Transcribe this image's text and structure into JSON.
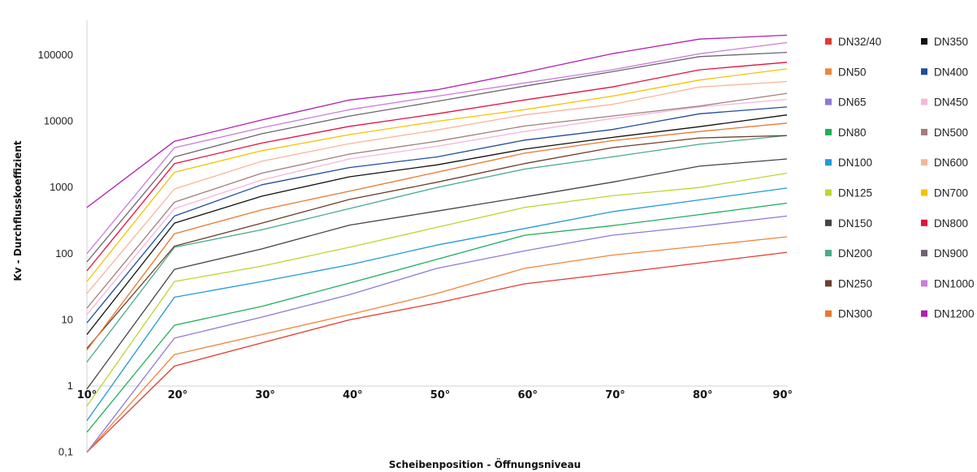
{
  "chart_data": {
    "type": "line",
    "xlabel": "Scheibenposition - Öffnungsniveau",
    "ylabel": "Kv - Durchflusskoeffizient",
    "categories": [
      "10°",
      "20°",
      "30°",
      "40°",
      "50°",
      "60°",
      "70°",
      "80°",
      "90°"
    ],
    "y_scale": "log",
    "ylim": [
      0.1,
      200000
    ],
    "y_ticks": [
      {
        "value": 0.1,
        "label": "0,1"
      },
      {
        "value": 1,
        "label": "1"
      },
      {
        "value": 10,
        "label": "10"
      },
      {
        "value": 100,
        "label": "100"
      },
      {
        "value": 1000,
        "label": "1000"
      },
      {
        "value": 10000,
        "label": "10000"
      },
      {
        "value": 100000,
        "label": "100000"
      }
    ],
    "grid": false,
    "legend_position": "right",
    "series": [
      {
        "name": "DN32/40",
        "color": "#e23b2e",
        "values": [
          0.1,
          2,
          4.5,
          10,
          18,
          35,
          50,
          72,
          105
        ]
      },
      {
        "name": "DN50",
        "color": "#f0853a",
        "values": [
          0.1,
          3,
          6,
          12,
          25,
          60,
          95,
          130,
          180
        ]
      },
      {
        "name": "DN65",
        "color": "#8f79d6",
        "values": [
          0.1,
          5.3,
          11,
          24,
          60,
          110,
          190,
          260,
          370
        ]
      },
      {
        "name": "DN80",
        "color": "#1fae5c",
        "values": [
          0.2,
          8.3,
          16,
          36,
          82,
          190,
          265,
          390,
          580
        ]
      },
      {
        "name": "DN100",
        "color": "#2199d6",
        "values": [
          0.3,
          22,
          38,
          68,
          135,
          240,
          430,
          650,
          980
        ]
      },
      {
        "name": "DN125",
        "color": "#bcd630",
        "values": [
          0.5,
          38,
          65,
          125,
          250,
          500,
          750,
          1000,
          1650
        ]
      },
      {
        "name": "DN150",
        "color": "#444444",
        "values": [
          0.9,
          58,
          118,
          270,
          440,
          720,
          1200,
          2100,
          2700
        ]
      },
      {
        "name": "DN200",
        "color": "#45ab8e",
        "values": [
          2.3,
          125,
          230,
          480,
          1000,
          1900,
          2900,
          4500,
          6100
        ]
      },
      {
        "name": "DN250",
        "color": "#6b3f2a",
        "values": [
          3.7,
          130,
          290,
          660,
          1200,
          2300,
          4000,
          5600,
          6100
        ]
      },
      {
        "name": "DN300",
        "color": "#e8782e",
        "values": [
          3.5,
          200,
          460,
          880,
          1700,
          3300,
          5100,
          7000,
          9400
        ]
      },
      {
        "name": "DN350",
        "color": "#111111",
        "values": [
          6,
          290,
          740,
          1450,
          2200,
          3800,
          5700,
          8300,
          12500
        ]
      },
      {
        "name": "DN400",
        "color": "#1f4d9e",
        "values": [
          9,
          370,
          1100,
          2000,
          2900,
          5200,
          7500,
          13000,
          16500
        ]
      },
      {
        "name": "DN450",
        "color": "#f3b8db",
        "values": [
          12,
          480,
          1300,
          2700,
          4200,
          7000,
          11000,
          16500,
          21500
        ]
      },
      {
        "name": "DN500",
        "color": "#a07e7b",
        "values": [
          15,
          600,
          1650,
          3200,
          5000,
          8500,
          12000,
          17000,
          26500
        ]
      },
      {
        "name": "DN600",
        "color": "#f8b59a",
        "values": [
          25,
          950,
          2500,
          4600,
          7400,
          12500,
          18000,
          33000,
          40000
        ]
      },
      {
        "name": "DN700",
        "color": "#f6c200",
        "values": [
          38,
          1700,
          3600,
          6300,
          10000,
          15000,
          24000,
          42000,
          62000
        ]
      },
      {
        "name": "DN800",
        "color": "#e0123f",
        "values": [
          55,
          2300,
          4700,
          8400,
          13000,
          21000,
          33000,
          60000,
          78000
        ]
      },
      {
        "name": "DN900",
        "color": "#6e6470",
        "values": [
          75,
          2900,
          6500,
          12000,
          20000,
          34000,
          56000,
          95000,
          110000
        ]
      },
      {
        "name": "DN1000",
        "color": "#c97ddc",
        "values": [
          100,
          4000,
          8000,
          15000,
          24000,
          38000,
          60000,
          105000,
          155000
        ]
      },
      {
        "name": "DN1200",
        "color": "#b01fb0",
        "values": [
          500,
          5000,
          10500,
          21000,
          30000,
          55000,
          105000,
          175000,
          200000
        ]
      }
    ]
  }
}
